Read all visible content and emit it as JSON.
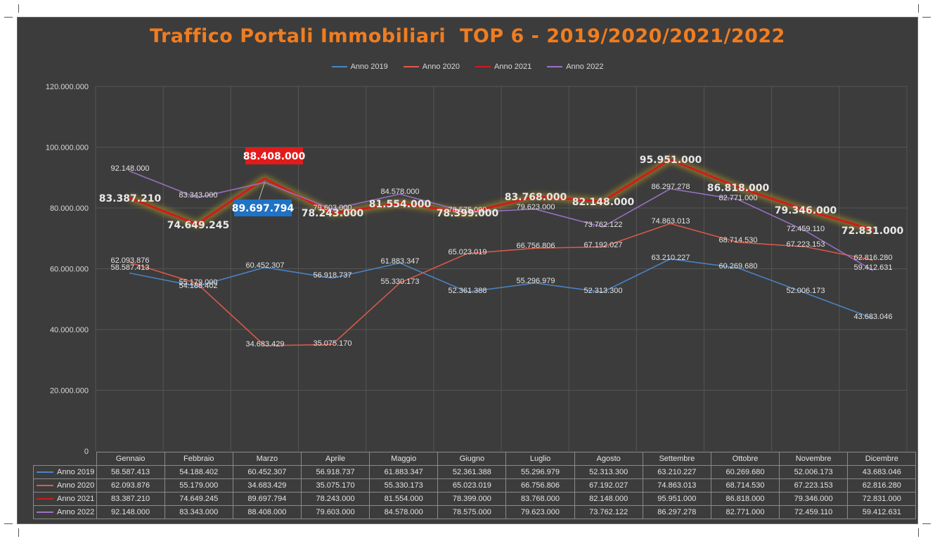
{
  "chart_data": {
    "type": "line",
    "title": "Traffico Portali Immobiliari  TOP 6 - 2019/2020/2021/2022",
    "categories": [
      "Gennaio",
      "Febbraio",
      "Marzo",
      "Aprile",
      "Maggio",
      "Giugno",
      "Luglio",
      "Agosto",
      "Settembre",
      "Ottobre",
      "Novembre",
      "Dicembre"
    ],
    "ylim": [
      0,
      120000000
    ],
    "yticks": [
      "0",
      "20.000.000",
      "40.000.000",
      "60.000.000",
      "80.000.000",
      "100.000.000",
      "120.000.000"
    ],
    "grid": true,
    "legend_position": "top",
    "series": [
      {
        "name": "Anno 2019",
        "color": "#4a86c8",
        "values": [
          58587413,
          54188402,
          60452307,
          56918737,
          61883347,
          52361388,
          55296979,
          52313300,
          63210227,
          60269680,
          52006173,
          43683046
        ],
        "labels": [
          "58.587.413",
          "54.188.402",
          "60.452.307",
          "56.918.737",
          "61.883.347",
          "52.361.388",
          "55.296.979",
          "52.313.300",
          "63.210.227",
          "60.269.680",
          "52.006.173",
          "43.683.046"
        ]
      },
      {
        "name": "Anno 2020",
        "color": "#e05a4a",
        "values": [
          62093876,
          55179000,
          34683429,
          35075170,
          55330173,
          65023019,
          66756806,
          67192027,
          74863013,
          68714530,
          67223153,
          62816280
        ],
        "labels": [
          "62.093.876",
          "55.179.000",
          "34.683.429",
          "35.075.170",
          "55.330.173",
          "65.023.019",
          "66.756.806",
          "67.192.027",
          "74.863.013",
          "68.714.530",
          "67.223.153",
          "62.816.280"
        ]
      },
      {
        "name": "Anno 2021",
        "color": "#d21a1a",
        "values": [
          83387210,
          74649245,
          89697794,
          78243000,
          81554000,
          78399000,
          83768000,
          82148000,
          95951000,
          86818000,
          79346000,
          72831000
        ],
        "labels": [
          "83.387.210",
          "74.649.245",
          "89.697.794",
          "78.243.000",
          "81.554.000",
          "78.399.000",
          "83.768.000",
          "82.148.000",
          "95.951.000",
          "86.818.000",
          "79.346.000",
          "72.831.000"
        ]
      },
      {
        "name": "Anno 2022",
        "color": "#9b72c6",
        "values": [
          92148000,
          83343000,
          88408000,
          79603000,
          84578000,
          78575000,
          79623000,
          73762122,
          86297278,
          82771000,
          72459110,
          59412631
        ],
        "labels": [
          "92.148.000",
          "83.343.000",
          "88.408.000",
          "79.603.000",
          "84.578.000",
          "78.575.000",
          "79.623.000",
          "73.762.122",
          "86.297.278",
          "82.771.000",
          "72.459.110",
          "59.412.631"
        ]
      }
    ]
  }
}
